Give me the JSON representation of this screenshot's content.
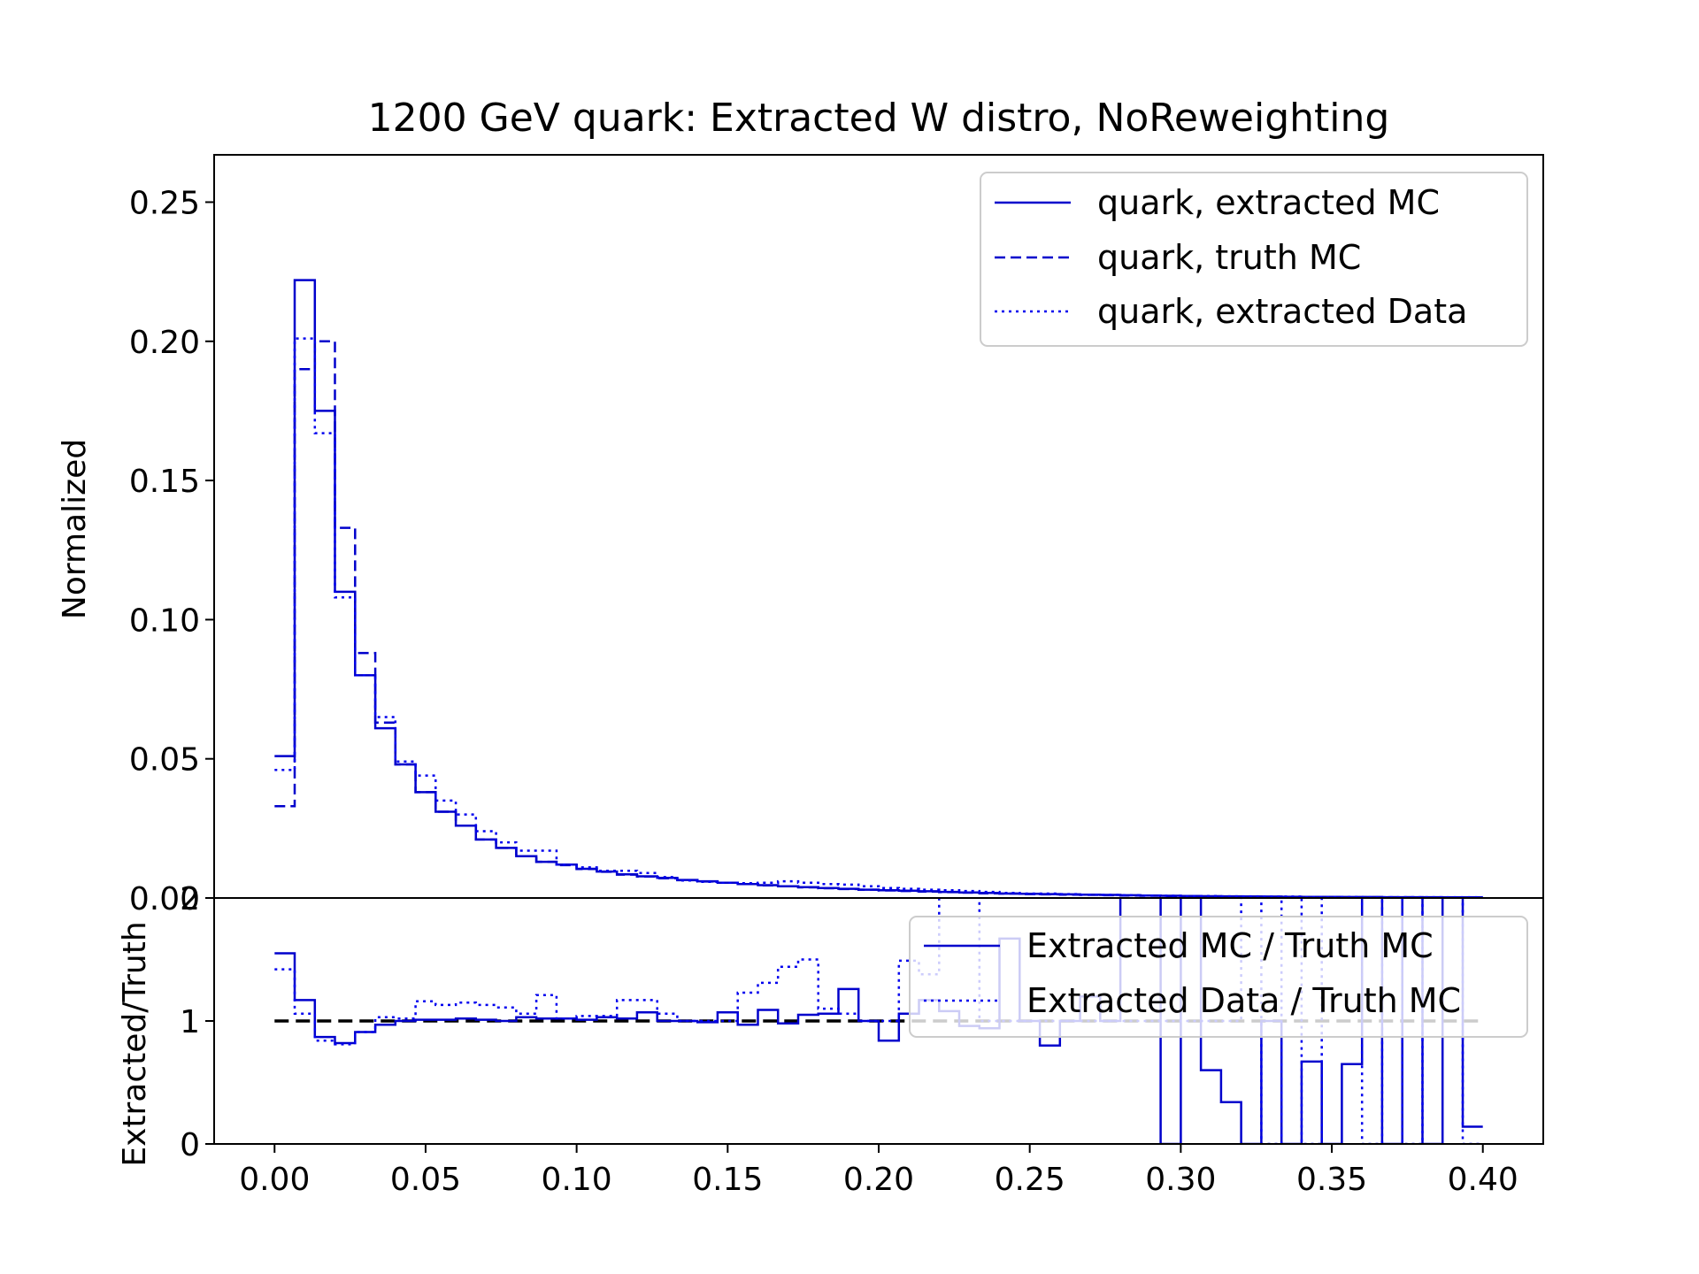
{
  "chart_data": [
    {
      "panel": "main",
      "type": "line",
      "drawstyle": "steps-post",
      "title": "1200 GeV quark: Extracted W distro, NoReweighting",
      "xlabel": "",
      "ylabel": "Normalized",
      "xlim": [
        -0.02,
        0.42
      ],
      "ylim": [
        0,
        0.267
      ],
      "x_ticks": [
        "0.00",
        "0.05",
        "0.10",
        "0.15",
        "0.20",
        "0.25",
        "0.30",
        "0.35",
        "0.40"
      ],
      "y_ticks": [
        "0.00",
        "0.05",
        "0.10",
        "0.15",
        "0.20",
        "0.25"
      ],
      "legend_position": "top-right",
      "bin_edges_step": 0.00667,
      "bin_edges_range": [
        0,
        0.4
      ],
      "series": [
        {
          "name": "quark, extracted MC",
          "style": "solid",
          "color": "#0000cc",
          "values": [
            0.051,
            0.222,
            0.175,
            0.11,
            0.08,
            0.061,
            0.048,
            0.038,
            0.031,
            0.026,
            0.021,
            0.018,
            0.015,
            0.013,
            0.012,
            0.0105,
            0.0095,
            0.0085,
            0.0078,
            0.0072,
            0.0065,
            0.006,
            0.0055,
            0.005,
            0.0046,
            0.0042,
            0.0039,
            0.0036,
            0.0033,
            0.003,
            0.0028,
            0.0026,
            0.0024,
            0.0022,
            0.002,
            0.0018,
            0.0016,
            0.0015,
            0.0014,
            0.0013,
            0.0012,
            0.0011,
            0.001,
            0.0009,
            0.0008,
            0.0007,
            0.00065,
            0.0006,
            0.00055,
            0.0005,
            0.00045,
            0.0004,
            0.0004,
            0.00035,
            0.00035,
            0.0003,
            0.0003,
            0.0003,
            0.00025,
            0.00025
          ]
        },
        {
          "name": "quark, truth MC",
          "style": "dashed",
          "color": "#0000cc",
          "values": [
            0.033,
            0.19,
            0.2,
            0.133,
            0.088,
            0.063,
            0.048,
            0.038,
            0.031,
            0.026,
            0.021,
            0.018,
            0.015,
            0.013,
            0.0118,
            0.0104,
            0.0094,
            0.0084,
            0.0077,
            0.0071,
            0.0064,
            0.0059,
            0.0055,
            0.005,
            0.0045,
            0.0042,
            0.0038,
            0.0035,
            0.0032,
            0.003,
            0.0027,
            0.0025,
            0.0023,
            0.0021,
            0.0019,
            0.0017,
            0.0016,
            0.0014,
            0.0013,
            0.0012,
            0.0011,
            0.001,
            0.0009,
            0.0008,
            0.0007,
            0.0006,
            0.0006,
            0.00055,
            0.0005,
            0.00045,
            0.0004,
            0.0004,
            0.00035,
            0.0003,
            0.0003,
            0.0003,
            0.0003,
            0.00025,
            0.00025,
            0.00025
          ]
        },
        {
          "name": "quark, extracted Data",
          "style": "dotted",
          "color": "#0000ee",
          "values": [
            0.046,
            0.201,
            0.167,
            0.108,
            0.08,
            0.065,
            0.049,
            0.044,
            0.035,
            0.03,
            0.024,
            0.02,
            0.017,
            0.017,
            0.012,
            0.011,
            0.0098,
            0.0098,
            0.009,
            0.0075,
            0.0063,
            0.0058,
            0.0055,
            0.0053,
            0.0055,
            0.006,
            0.0055,
            0.005,
            0.0048,
            0.0042,
            0.0036,
            0.0033,
            0.003,
            0.0028,
            0.0025,
            0.0022,
            0.0018,
            0.0016,
            0.0016,
            0.0014,
            0.0012,
            0.0011,
            0.001,
            0.0009,
            0.0008,
            0.0007,
            0.0007,
            0.0006,
            0.0006,
            0.0005,
            0.0005,
            0.0004,
            0.0004,
            0.0004,
            0.0003,
            0.0003,
            0.0003,
            0.0003,
            0.0003,
            0.0003
          ]
        }
      ]
    },
    {
      "panel": "ratio",
      "type": "line",
      "drawstyle": "steps-post",
      "xlabel": "",
      "ylabel": "Extracted/Truth",
      "xlim": [
        -0.02,
        0.42
      ],
      "ylim": [
        0,
        2
      ],
      "x_ticks": [
        "0.00",
        "0.05",
        "0.10",
        "0.15",
        "0.20",
        "0.25",
        "0.30",
        "0.35",
        "0.40"
      ],
      "y_ticks": [
        "0",
        "1",
        "2"
      ],
      "reference_line": 1,
      "legend_position": "top-right",
      "series": [
        {
          "name": "Extracted MC / Truth MC",
          "style": "solid",
          "color": "#0000cc",
          "values": [
            1.55,
            1.17,
            0.87,
            0.82,
            0.91,
            0.97,
            1.0,
            1.01,
            1.01,
            1.02,
            1.01,
            1.0,
            1.03,
            1.02,
            1.02,
            1.01,
            1.03,
            1.02,
            1.07,
            1.0,
            1.0,
            0.99,
            1.07,
            0.97,
            1.09,
            0.98,
            1.05,
            1.06,
            1.26,
            1.0,
            0.84,
            1.06,
            1.17,
            1.08,
            0.96,
            0.94,
            1.67,
            1.0,
            0.8,
            1.0,
            1.2,
            1.0,
            2.5,
            2.5,
            0.0,
            2.5,
            0.6,
            0.34,
            0.0,
            1.0,
            0.0,
            0.67,
            0.0,
            0.65,
            2.5,
            0.0,
            2.5,
            0.0,
            2.5,
            0.14
          ]
        },
        {
          "name": "Extracted Data / Truth MC",
          "style": "dotted",
          "color": "#0000ee",
          "values": [
            1.42,
            1.06,
            0.84,
            0.81,
            0.91,
            1.03,
            1.02,
            1.16,
            1.13,
            1.15,
            1.13,
            1.11,
            1.06,
            1.21,
            1.02,
            1.04,
            1.04,
            1.17,
            1.17,
            1.06,
            1.0,
            1.0,
            1.0,
            1.23,
            1.31,
            1.44,
            1.5,
            1.1,
            1.06,
            1.0,
            1.0,
            1.49,
            1.38,
            2.5,
            2.5,
            1.0,
            1.0,
            1.0,
            1.0,
            1.0,
            1.0,
            1.0,
            1.0,
            1.0,
            1.0,
            1.0,
            1.0,
            1.0,
            2.5,
            0.0,
            2.5,
            0.0,
            2.5,
            2.5,
            0.0,
            2.5,
            0.0,
            2.5,
            2.5,
            0.0
          ]
        }
      ]
    }
  ]
}
